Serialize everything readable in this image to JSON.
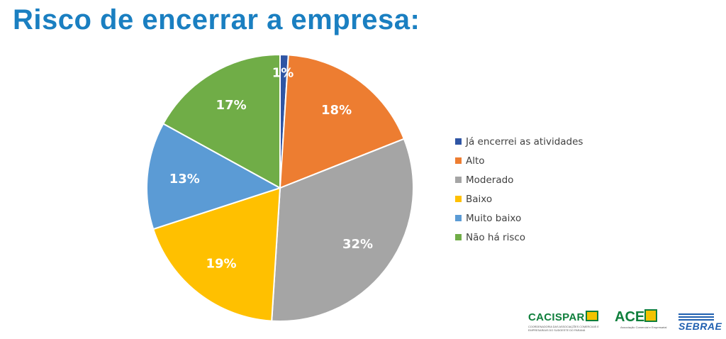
{
  "title": "Risco de encerrar a empresa:",
  "chart_data": {
    "type": "pie",
    "title": "Risco de encerrar a empresa:",
    "legend_position": "right",
    "slices": [
      {
        "label": "Já encerrei as atividades",
        "value": 1,
        "display": "1%",
        "color": "#2f55a4"
      },
      {
        "label": "Alto",
        "value": 18,
        "display": "18%",
        "color": "#ed7d31"
      },
      {
        "label": "Moderado",
        "value": 32,
        "display": "32%",
        "color": "#a5a5a5"
      },
      {
        "label": "Baixo",
        "value": 19,
        "display": "19%",
        "color": "#ffc000"
      },
      {
        "label": "Muito baixo",
        "value": 13,
        "display": "13%",
        "color": "#5b9bd5"
      },
      {
        "label": "Não há risco",
        "value": 17,
        "display": "17%",
        "color": "#70ad47"
      }
    ]
  },
  "logos": {
    "cacispar": {
      "name": "CACISPAR",
      "tagline": "COORDENADORIA DAS ASSOCIAÇÕES COMERCIAIS E EMPRESARIAIS DO SUDOESTE DO PARANÁ"
    },
    "ace": {
      "name": "ACE",
      "tagline": "Associação Comercial e Empresarial"
    },
    "sebrae": {
      "name": "SEBRAE"
    }
  }
}
